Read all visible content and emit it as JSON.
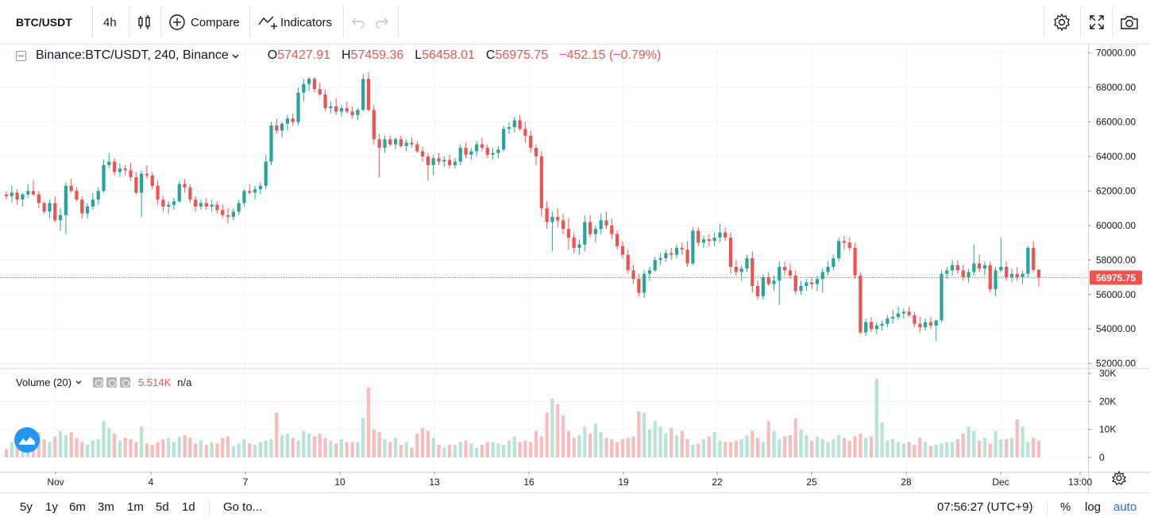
{
  "toolbar": {
    "symbol": "BTC/USDT",
    "interval": "4h",
    "compare_label": "Compare",
    "indicators_label": "Indicators"
  },
  "legend": {
    "symbol_text": "Binance:BTC/USDT, 240, Binance",
    "open_key": "O",
    "open": "57427.91",
    "high_key": "H",
    "high": "57459.36",
    "low_key": "L",
    "low": "56458.01",
    "close_key": "C",
    "close": "56975.75",
    "change": "−452.15 (−0.79%)"
  },
  "volume_legend": {
    "label": "Volume (20)",
    "value": "5.514K",
    "na": "n/a"
  },
  "bottombar": {
    "ranges": [
      "5y",
      "1y",
      "6m",
      "3m",
      "1m",
      "5d",
      "1d"
    ],
    "goto": "Go to...",
    "clock": "07:56:27 (UTC+9)",
    "percent": "%",
    "log": "log",
    "auto": "auto"
  },
  "colors": {
    "up": "#26a69a",
    "down": "#ef5350",
    "vol_up": "#b8e3d7",
    "vol_down": "#f7bcbc",
    "grid": "#f0f3fa",
    "last_price": "#ef5350"
  },
  "chart_data": {
    "type": "candlestick",
    "x_ticks": [
      "Nov",
      "4",
      "7",
      "10",
      "13",
      "16",
      "19",
      "22",
      "25",
      "28",
      "Dec",
      "13:00"
    ],
    "price_ticks": [
      "70000.00",
      "68000.00",
      "66000.00",
      "64000.00",
      "62000.00",
      "60000.00",
      "58000.00",
      "56000.00",
      "54000.00",
      "52000.00"
    ],
    "price_range": [
      51800,
      70400
    ],
    "volume_ticks": [
      "30K",
      "20K",
      "10K",
      "0"
    ],
    "volume_range": [
      0,
      30000
    ],
    "last_price_label": "56975.75",
    "candles": [
      [
        61800,
        62000,
        61500,
        61700
      ],
      [
        61700,
        62300,
        61300,
        61900
      ],
      [
        61900,
        62100,
        61200,
        61500
      ],
      [
        61500,
        61900,
        61100,
        61800
      ],
      [
        61800,
        62400,
        61600,
        62000
      ],
      [
        62000,
        62600,
        61700,
        61800
      ],
      [
        61800,
        62000,
        61000,
        61300
      ],
      [
        61300,
        61400,
        60700,
        60800
      ],
      [
        60800,
        61500,
        60400,
        61300
      ],
      [
        61300,
        61700,
        60200,
        60300
      ],
      [
        60300,
        61000,
        59700,
        60600
      ],
      [
        60600,
        62500,
        59500,
        62300
      ],
      [
        62300,
        62700,
        61900,
        62000
      ],
      [
        62000,
        62200,
        61400,
        61500
      ],
      [
        61500,
        61700,
        60400,
        60700
      ],
      [
        60700,
        61300,
        60400,
        61100
      ],
      [
        61100,
        61900,
        60900,
        61500
      ],
      [
        61500,
        62200,
        61200,
        62000
      ],
      [
        62000,
        63800,
        61900,
        63500
      ],
      [
        63500,
        64200,
        63300,
        63700
      ],
      [
        63700,
        63900,
        62900,
        63100
      ],
      [
        63100,
        63600,
        62800,
        63300
      ],
      [
        63300,
        63500,
        62900,
        63200
      ],
      [
        63200,
        63600,
        62600,
        62800
      ],
      [
        62800,
        63100,
        61800,
        61900
      ],
      [
        61900,
        63200,
        60500,
        63000
      ],
      [
        63000,
        63500,
        62700,
        62900
      ],
      [
        62900,
        63100,
        62100,
        62300
      ],
      [
        62300,
        62600,
        61200,
        61500
      ],
      [
        61500,
        61700,
        60800,
        61100
      ],
      [
        61100,
        61400,
        60700,
        61200
      ],
      [
        61200,
        61600,
        60900,
        61400
      ],
      [
        61400,
        62600,
        61300,
        62400
      ],
      [
        62400,
        62700,
        61900,
        62200
      ],
      [
        62200,
        62400,
        61300,
        61500
      ],
      [
        61500,
        61700,
        60800,
        61100
      ],
      [
        61100,
        61500,
        60900,
        61300
      ],
      [
        61300,
        61600,
        60900,
        61100
      ],
      [
        61100,
        61500,
        60800,
        61200
      ],
      [
        61200,
        61400,
        60700,
        60900
      ],
      [
        60900,
        61200,
        60400,
        60600
      ],
      [
        60600,
        61000,
        60100,
        60500
      ],
      [
        60500,
        61000,
        60300,
        60800
      ],
      [
        60800,
        61500,
        60600,
        61300
      ],
      [
        61300,
        62100,
        61100,
        62000
      ],
      [
        62000,
        62400,
        61800,
        61900
      ],
      [
        61900,
        62300,
        61500,
        62100
      ],
      [
        62100,
        62500,
        61800,
        62300
      ],
      [
        62300,
        64100,
        62100,
        63700
      ],
      [
        63700,
        66000,
        63500,
        65800
      ],
      [
        65800,
        66200,
        65300,
        65500
      ],
      [
        65500,
        66000,
        65100,
        65900
      ],
      [
        65900,
        66400,
        65500,
        66200
      ],
      [
        66200,
        66500,
        65800,
        66000
      ],
      [
        66000,
        68000,
        65800,
        67700
      ],
      [
        67700,
        68500,
        67200,
        68200
      ],
      [
        68200,
        68600,
        67800,
        68500
      ],
      [
        68500,
        68600,
        67700,
        67900
      ],
      [
        67900,
        68300,
        67500,
        67600
      ],
      [
        67600,
        67900,
        66600,
        66800
      ],
      [
        66800,
        67200,
        66500,
        66900
      ],
      [
        66900,
        67400,
        66400,
        66600
      ],
      [
        66600,
        67000,
        66300,
        66800
      ],
      [
        66800,
        67200,
        66500,
        66600
      ],
      [
        66600,
        66900,
        66200,
        66400
      ],
      [
        66400,
        66800,
        66100,
        66700
      ],
      [
        66700,
        68800,
        66600,
        68500
      ],
      [
        68500,
        68900,
        66600,
        66700
      ],
      [
        66700,
        67000,
        64700,
        65000
      ],
      [
        65000,
        65300,
        62800,
        64500
      ],
      [
        64500,
        65200,
        64200,
        65000
      ],
      [
        65000,
        65200,
        64600,
        64700
      ],
      [
        64700,
        65100,
        64400,
        65000
      ],
      [
        65000,
        65200,
        64500,
        64600
      ],
      [
        64600,
        65000,
        64300,
        64800
      ],
      [
        64800,
        65100,
        64500,
        64700
      ],
      [
        64700,
        64900,
        64200,
        64300
      ],
      [
        64300,
        64600,
        63700,
        64000
      ],
      [
        64000,
        64200,
        62600,
        63500
      ],
      [
        63500,
        64100,
        62900,
        63900
      ],
      [
        63900,
        64200,
        63500,
        63700
      ],
      [
        63700,
        64000,
        63400,
        63800
      ],
      [
        63800,
        64100,
        63300,
        63500
      ],
      [
        63500,
        63900,
        63300,
        63700
      ],
      [
        63700,
        64700,
        63500,
        64500
      ],
      [
        64500,
        64800,
        63900,
        64100
      ],
      [
        64100,
        64500,
        63800,
        64300
      ],
      [
        64300,
        64900,
        64000,
        64700
      ],
      [
        64700,
        65100,
        64300,
        64500
      ],
      [
        64500,
        64700,
        63900,
        64100
      ],
      [
        64100,
        64500,
        63800,
        64200
      ],
      [
        64200,
        64600,
        63900,
        64400
      ],
      [
        64400,
        65800,
        64300,
        65600
      ],
      [
        65600,
        66000,
        65300,
        65700
      ],
      [
        65700,
        66300,
        65400,
        66100
      ],
      [
        66100,
        66400,
        65500,
        65600
      ],
      [
        65600,
        66000,
        64800,
        65200
      ],
      [
        65200,
        65500,
        64200,
        64500
      ],
      [
        64500,
        64700,
        63500,
        64000
      ],
      [
        64000,
        64300,
        60500,
        61000
      ],
      [
        61000,
        61400,
        59800,
        60200
      ],
      [
        60200,
        60800,
        58500,
        60500
      ],
      [
        60500,
        61000,
        59900,
        60300
      ],
      [
        60300,
        60700,
        59500,
        59800
      ],
      [
        59800,
        60400,
        58600,
        59300
      ],
      [
        59300,
        59600,
        58400,
        58700
      ],
      [
        58700,
        59200,
        58300,
        58900
      ],
      [
        58900,
        60600,
        58500,
        60200
      ],
      [
        60200,
        60600,
        59300,
        59500
      ],
      [
        59500,
        60000,
        59000,
        59800
      ],
      [
        59800,
        60700,
        59500,
        60300
      ],
      [
        60300,
        60800,
        59800,
        60000
      ],
      [
        60000,
        60400,
        59200,
        59500
      ],
      [
        59500,
        59700,
        58600,
        58800
      ],
      [
        58800,
        59100,
        58100,
        58300
      ],
      [
        58300,
        58600,
        57200,
        57400
      ],
      [
        57400,
        57700,
        56600,
        56900
      ],
      [
        56900,
        57200,
        55900,
        56100
      ],
      [
        56100,
        57400,
        55800,
        57200
      ],
      [
        57200,
        57600,
        56800,
        57400
      ],
      [
        57400,
        58200,
        57300,
        58000
      ],
      [
        58000,
        58400,
        57700,
        58100
      ],
      [
        58100,
        58600,
        57900,
        58400
      ],
      [
        58400,
        58700,
        58000,
        58300
      ],
      [
        58300,
        58900,
        58100,
        58700
      ],
      [
        58700,
        59000,
        58300,
        58600
      ],
      [
        58600,
        59100,
        57600,
        57800
      ],
      [
        57800,
        59900,
        57700,
        59700
      ],
      [
        59700,
        59900,
        58800,
        59000
      ],
      [
        59000,
        59400,
        58700,
        59200
      ],
      [
        59200,
        59500,
        58800,
        59100
      ],
      [
        59100,
        59600,
        58800,
        59300
      ],
      [
        59300,
        60100,
        59000,
        59600
      ],
      [
        59600,
        59900,
        59100,
        59300
      ],
      [
        59300,
        59600,
        57200,
        57600
      ],
      [
        57600,
        58000,
        57100,
        57300
      ],
      [
        57300,
        57700,
        56800,
        57500
      ],
      [
        57500,
        58300,
        57300,
        58100
      ],
      [
        58100,
        58500,
        56100,
        56500
      ],
      [
        56500,
        56800,
        55700,
        55900
      ],
      [
        55900,
        57200,
        55700,
        57000
      ],
      [
        57000,
        57300,
        56500,
        56600
      ],
      [
        56600,
        57100,
        56200,
        56800
      ],
      [
        56800,
        57900,
        55400,
        57600
      ],
      [
        57600,
        57900,
        57100,
        57400
      ],
      [
        57400,
        57800,
        56900,
        57100
      ],
      [
        57100,
        57400,
        56000,
        56200
      ],
      [
        56200,
        56800,
        56000,
        56500
      ],
      [
        56500,
        56900,
        56200,
        56700
      ],
      [
        56700,
        57000,
        56300,
        56600
      ],
      [
        56600,
        57100,
        56200,
        56900
      ],
      [
        56900,
        57500,
        56100,
        57300
      ],
      [
        57300,
        57900,
        57100,
        57600
      ],
      [
        57600,
        58300,
        57400,
        58100
      ],
      [
        58100,
        59300,
        57900,
        59100
      ],
      [
        59100,
        59400,
        58600,
        59000
      ],
      [
        59000,
        59300,
        58500,
        58700
      ],
      [
        58700,
        59000,
        56900,
        57100
      ],
      [
        57100,
        57300,
        53700,
        53800
      ],
      [
        53800,
        54600,
        53600,
        54400
      ],
      [
        54400,
        54700,
        53800,
        54000
      ],
      [
        54000,
        54400,
        53700,
        54200
      ],
      [
        54200,
        54500,
        53900,
        54300
      ],
      [
        54300,
        54800,
        54100,
        54600
      ],
      [
        54600,
        55100,
        54300,
        54700
      ],
      [
        54700,
        55300,
        54500,
        54900
      ],
      [
        54900,
        55200,
        54600,
        55000
      ],
      [
        55000,
        55300,
        54700,
        54800
      ],
      [
        54800,
        55000,
        54100,
        54300
      ],
      [
        54300,
        54700,
        53800,
        54100
      ],
      [
        54100,
        54600,
        53900,
        54400
      ],
      [
        54400,
        54700,
        54000,
        54200
      ],
      [
        54200,
        54500,
        53300,
        54500
      ],
      [
        54500,
        57400,
        54400,
        57200
      ],
      [
        57200,
        57600,
        56900,
        57400
      ],
      [
        57400,
        58000,
        57100,
        57700
      ],
      [
        57700,
        58000,
        57200,
        57400
      ],
      [
        57400,
        57700,
        56800,
        57000
      ],
      [
        57000,
        57500,
        56700,
        57300
      ],
      [
        57300,
        58900,
        57100,
        57800
      ],
      [
        57800,
        58300,
        57300,
        57500
      ],
      [
        57500,
        57900,
        57100,
        57700
      ],
      [
        57700,
        57900,
        56100,
        56300
      ],
      [
        56300,
        57600,
        55900,
        57400
      ],
      [
        57400,
        59300,
        57300,
        57600
      ],
      [
        57600,
        57900,
        56800,
        57000
      ],
      [
        57000,
        57500,
        56700,
        57200
      ],
      [
        57200,
        57600,
        56800,
        57000
      ],
      [
        57000,
        57400,
        56600,
        57200
      ],
      [
        57200,
        58800,
        57000,
        58700
      ],
      [
        58700,
        59100,
        57300,
        57430
      ],
      [
        57430,
        57460,
        56460,
        56980
      ]
    ],
    "volumes": [
      3000,
      5500,
      3800,
      6000,
      4200,
      8000,
      9000,
      6500,
      5500,
      7500,
      9500,
      8000,
      9000,
      7000,
      5500,
      4500,
      6000,
      6500,
      13000,
      10500,
      8500,
      6000,
      7000,
      6500,
      5500,
      11000,
      5000,
      4500,
      5500,
      6500,
      7000,
      5500,
      7500,
      8000,
      7000,
      5000,
      6000,
      4500,
      5500,
      5000,
      7000,
      7500,
      4000,
      5000,
      6500,
      5000,
      4500,
      5500,
      6000,
      6500,
      16000,
      8000,
      8500,
      7000,
      6000,
      9500,
      8500,
      7500,
      8500,
      7000,
      6000,
      5000,
      6500,
      5500,
      5500,
      5500,
      14000,
      25000,
      10000,
      9000,
      6500,
      5500,
      7000,
      4500,
      5500,
      3500,
      8500,
      10500,
      9500,
      7000,
      4500,
      3500,
      4500,
      4500,
      5500,
      6000,
      5000,
      3500,
      4500,
      5500,
      5500,
      5000,
      4500,
      6000,
      7500,
      5500,
      6000,
      5500,
      9500,
      7500,
      16000,
      21000,
      19000,
      15000,
      9500,
      7000,
      8000,
      11000,
      8500,
      12000,
      9000,
      7000,
      6500,
      5500,
      6500,
      7000,
      7500,
      16500,
      16000,
      10000,
      13000,
      11000,
      8500,
      10500,
      8000,
      9500,
      6500,
      4500,
      5000,
      6500,
      7500,
      9000,
      6000,
      5500,
      5500,
      6000,
      6500,
      8000,
      9500,
      7000,
      5500,
      13000,
      9500,
      6500,
      7500,
      8000,
      14000,
      10000,
      8000,
      6000,
      7500,
      6500,
      5500,
      6500,
      8000,
      7000,
      6000,
      7500,
      8500,
      7000,
      7500,
      28000,
      12500,
      6000,
      6500,
      5500,
      5000,
      5500,
      4500,
      7000,
      5500,
      4000,
      4500,
      5000,
      5500,
      5500,
      6500,
      8500,
      11000,
      9500,
      6000,
      7000,
      5000,
      9500,
      6500,
      6500,
      7000,
      13500,
      11000,
      5500,
      7000,
      6000,
      7500,
      10500,
      9000,
      5500
    ]
  }
}
